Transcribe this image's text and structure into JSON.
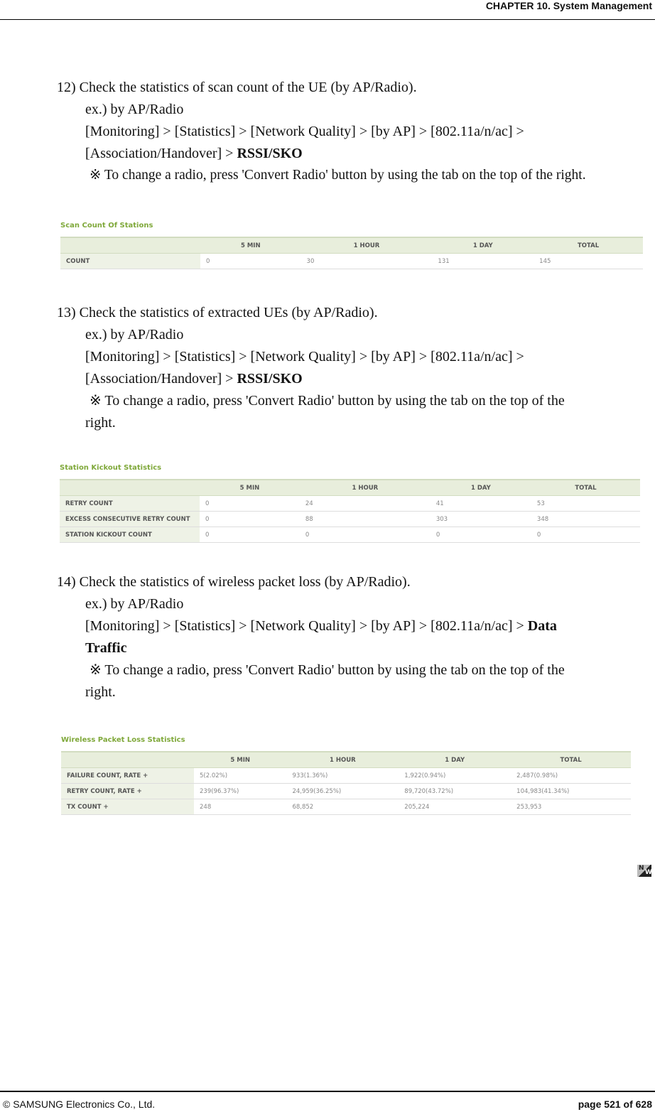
{
  "header": {
    "chapter": "CHAPTER 10. System Management"
  },
  "footer": {
    "copyright": "© SAMSUNG Electronics Co., Ltd.",
    "page": "page 521 of 628"
  },
  "sections": [
    {
      "heading": "12) Check the statistics of scan count of the UE (by AP/Radio).",
      "example": "ex.) by AP/Radio",
      "path1": "[Monitoring] > [Statistics] > [Network Quality] > [by AP] > [802.11a/n/ac] >",
      "path2": "[Association/Handover] > ",
      "path_bold": "RSSI/SKO",
      "note": "※   To change a radio, press 'Convert Radio' button by using the tab on the top of the right.",
      "table": {
        "title": "Scan Count Of Stations",
        "columns": [
          "",
          "5 MIN",
          "1 HOUR",
          "1 DAY",
          "TOTAL"
        ],
        "rows": [
          [
            "COUNT",
            "0",
            "30",
            "131",
            "145"
          ]
        ]
      }
    },
    {
      "heading": "13) Check the statistics of extracted UEs (by AP/Radio).",
      "example": "ex.) by AP/Radio",
      "path1": "[Monitoring] > [Statistics] > [Network Quality] > [by AP] > [802.11a/n/ac] >",
      "path2": "[Association/Handover] > ",
      "path_bold": "RSSI/SKO",
      "note": "※   To change a radio, press 'Convert Radio' button by using the tab on the top of the",
      "note2": "right.",
      "table": {
        "title": "Station Kickout Statistics",
        "columns": [
          "",
          "5 MIN",
          "1 HOUR",
          "1 DAY",
          "TOTAL"
        ],
        "rows": [
          [
            "RETRY COUNT",
            "0",
            "24",
            "41",
            "53"
          ],
          [
            "EXCESS CONSECUTIVE RETRY COUNT",
            "0",
            "88",
            "303",
            "348"
          ],
          [
            "STATION KICKOUT COUNT",
            "0",
            "0",
            "0",
            "0"
          ]
        ]
      }
    },
    {
      "heading": "14) Check the statistics of wireless packet loss (by AP/Radio).",
      "example": "ex.) by AP/Radio",
      "path1": "[Monitoring] > [Statistics] > [Network Quality] > [by AP] > [802.11a/n/ac] > ",
      "path1_bold": "Data",
      "path2_bold": "Traffic",
      "note": "※   To change a radio, press 'Convert Radio' button by using the tab on the top of the",
      "note2": "right.",
      "table": {
        "title": "Wireless Packet Loss Statistics",
        "columns": [
          "",
          "5 MIN",
          "1 HOUR",
          "1 DAY",
          "TOTAL"
        ],
        "rows": [
          [
            "FAILURE COUNT, RATE   +",
            "5(2.02%)",
            "933(1.36%)",
            "1,922(0.94%)",
            "2,487(0.98%)"
          ],
          [
            "RETRY COUNT, RATE   +",
            "239(96.37%)",
            "24,959(36.25%)",
            "89,720(43.72%)",
            "104,983(41.34%)"
          ],
          [
            "TX COUNT   +",
            "248",
            "68,852",
            "205,224",
            "253,953"
          ]
        ]
      }
    }
  ],
  "logo": {
    "text": "NW"
  }
}
